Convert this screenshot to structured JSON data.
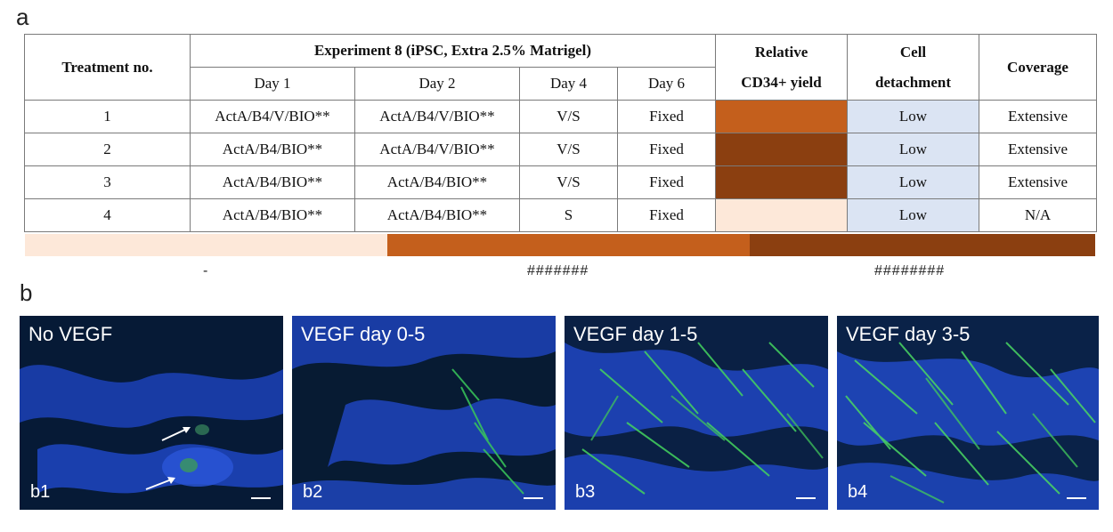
{
  "panel_a_label": "a",
  "panel_b_label": "b",
  "table": {
    "col_treatment": "Treatment no.",
    "col_experiment": "Experiment 8 (iPSC, Extra 2.5% Matrigel)",
    "col_yield_line1": "Relative",
    "col_yield_line2": "CD34+ yield",
    "col_detach_line1": "Cell",
    "col_detach_line2": "detachment",
    "col_coverage": "Coverage",
    "days": [
      "Day 1",
      "Day 2",
      "Day 4",
      "Day 6"
    ],
    "rows": [
      {
        "no": "1",
        "day1": "ActA/B4/V/BIO**",
        "day2": "ActA/B4/V/BIO**",
        "day4": "V/S",
        "day6": "Fixed",
        "yield_color": "#c45f1c",
        "detachment": "Low",
        "coverage": "Extensive"
      },
      {
        "no": "2",
        "day1": "ActA/B4/BIO**",
        "day2": "ActA/B4/V/BIO**",
        "day4": "V/S",
        "day6": "Fixed",
        "yield_color": "#8b3f10",
        "detachment": "Low",
        "coverage": "Extensive"
      },
      {
        "no": "3",
        "day1": "ActA/B4/BIO**",
        "day2": "ActA/B4/BIO**",
        "day4": "V/S",
        "day6": "Fixed",
        "yield_color": "#8b3f10",
        "detachment": "Low",
        "coverage": "Extensive"
      },
      {
        "no": "4",
        "day1": "ActA/B4/BIO**",
        "day2": "ActA/B4/BIO**",
        "day4": "S",
        "day6": "Fixed",
        "yield_color": "#fde8d9",
        "detachment": "Low",
        "coverage": "N/A"
      }
    ],
    "detachment_color": "#dbe4f3"
  },
  "legend": [
    {
      "color": "#fde8d9",
      "label": "-"
    },
    {
      "color": "#c45f1c",
      "label": "#######"
    },
    {
      "color": "#8b3f10",
      "label": "########"
    }
  ],
  "micrographs": [
    {
      "title": "No VEGF",
      "id": "b1"
    },
    {
      "title": "VEGF day 0-5",
      "id": "b2"
    },
    {
      "title": "VEGF day 1-5",
      "id": "b3"
    },
    {
      "title": "VEGF day 3-5",
      "id": "b4"
    }
  ]
}
